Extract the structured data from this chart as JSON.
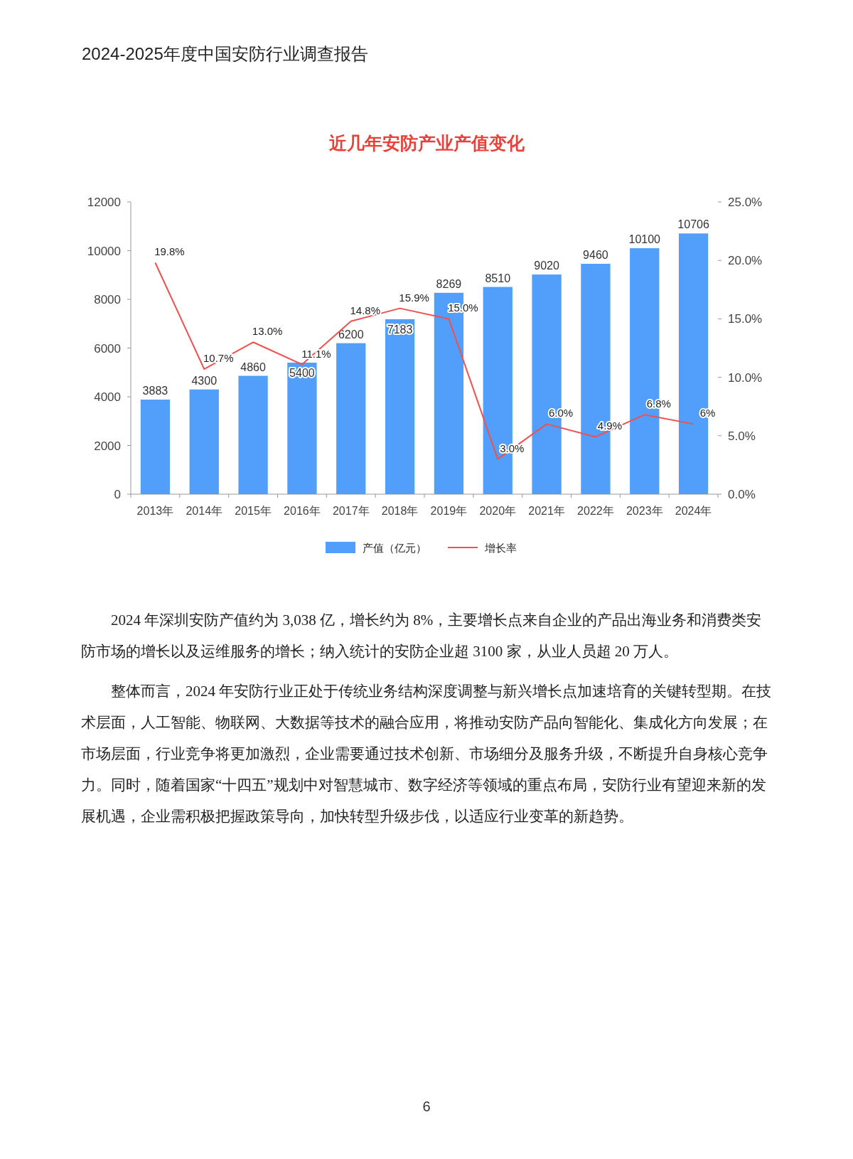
{
  "chart_data": {
    "type": "bar",
    "title": "近几年安防产业产值变化",
    "categories": [
      "2013年",
      "2014年",
      "2015年",
      "2016年",
      "2017年",
      "2018年",
      "2019年",
      "2020年",
      "2021年",
      "2022年",
      "2023年",
      "2024年"
    ],
    "series": [
      {
        "name": "产值（亿元）",
        "color": "#519ffa",
        "values": [
          3883,
          4300,
          4860,
          5400,
          6200,
          7183,
          8269,
          8510,
          9020,
          9460,
          10100,
          10706
        ],
        "value_labels": [
          "3883",
          "4300",
          "4860",
          "5400",
          "6200",
          "7183",
          "8269",
          "8510",
          "9020",
          "9460",
          "10100",
          "10706"
        ]
      },
      {
        "name": "增长率",
        "type": "line",
        "axis": "y2",
        "color": "#f0504f",
        "values": [
          19.8,
          10.7,
          13.0,
          11.1,
          14.8,
          15.9,
          15.0,
          3.0,
          6.0,
          4.9,
          6.8,
          6
        ],
        "value_labels": [
          "19.8%",
          "10.7%",
          "13.0%",
          "11.1%",
          "14.8%",
          "15.9%",
          "15.0%",
          "3.0%",
          "6.0%",
          "4.9%",
          "6.8%",
          "6%"
        ]
      }
    ],
    "ylim": [
      0,
      12000
    ],
    "yticks": [
      0,
      2000,
      4000,
      6000,
      8000,
      10000,
      12000
    ],
    "y2lim": [
      0,
      25
    ],
    "y2ticks": [
      {
        "value": 0,
        "label": "0.0%"
      },
      {
        "value": 5,
        "label": "5.0%"
      },
      {
        "value": 10,
        "label": "10.0%"
      },
      {
        "value": 15,
        "label": "15.0%"
      },
      {
        "value": 20,
        "label": "20.0%"
      },
      {
        "value": 25,
        "label": "25.0%"
      }
    ],
    "legend": "bottom",
    "grid": false,
    "marker": "none",
    "annotations": [
      "2024-2025年度中国安防行业调查报告",
      "2024 年深圳安防产值约为 3,038 亿，增长约为 8%，主要增长点来自企业的产品出海业务和消费类安防市场的增长以及运维服务的增长；纳入统计的安防企业超 3100 家，从业人员超 20 万人。",
      "整体而言，2024 年安防行业正处于传统业务结构深度调整与新兴增长点加速培育的关键转型期。在技术层面，人工智能、物联网、大数据等技术的融合应用，将推动安防产品向智能化、集成化方向发展；在市场层面，行业竞争将更加激烈，企业需要通过技术创新、市场细分及服务升级，不断提升自身核心竞争力。同时，随着国家“十四五”规划中对智慧城市、数字经济等领域的重点布局，安防行业有望迎来新的发展机遇，企业需积极把握政策导向，加快转型升级步伐，以适应行业变革的新趋势。",
      "6"
    ]
  }
}
